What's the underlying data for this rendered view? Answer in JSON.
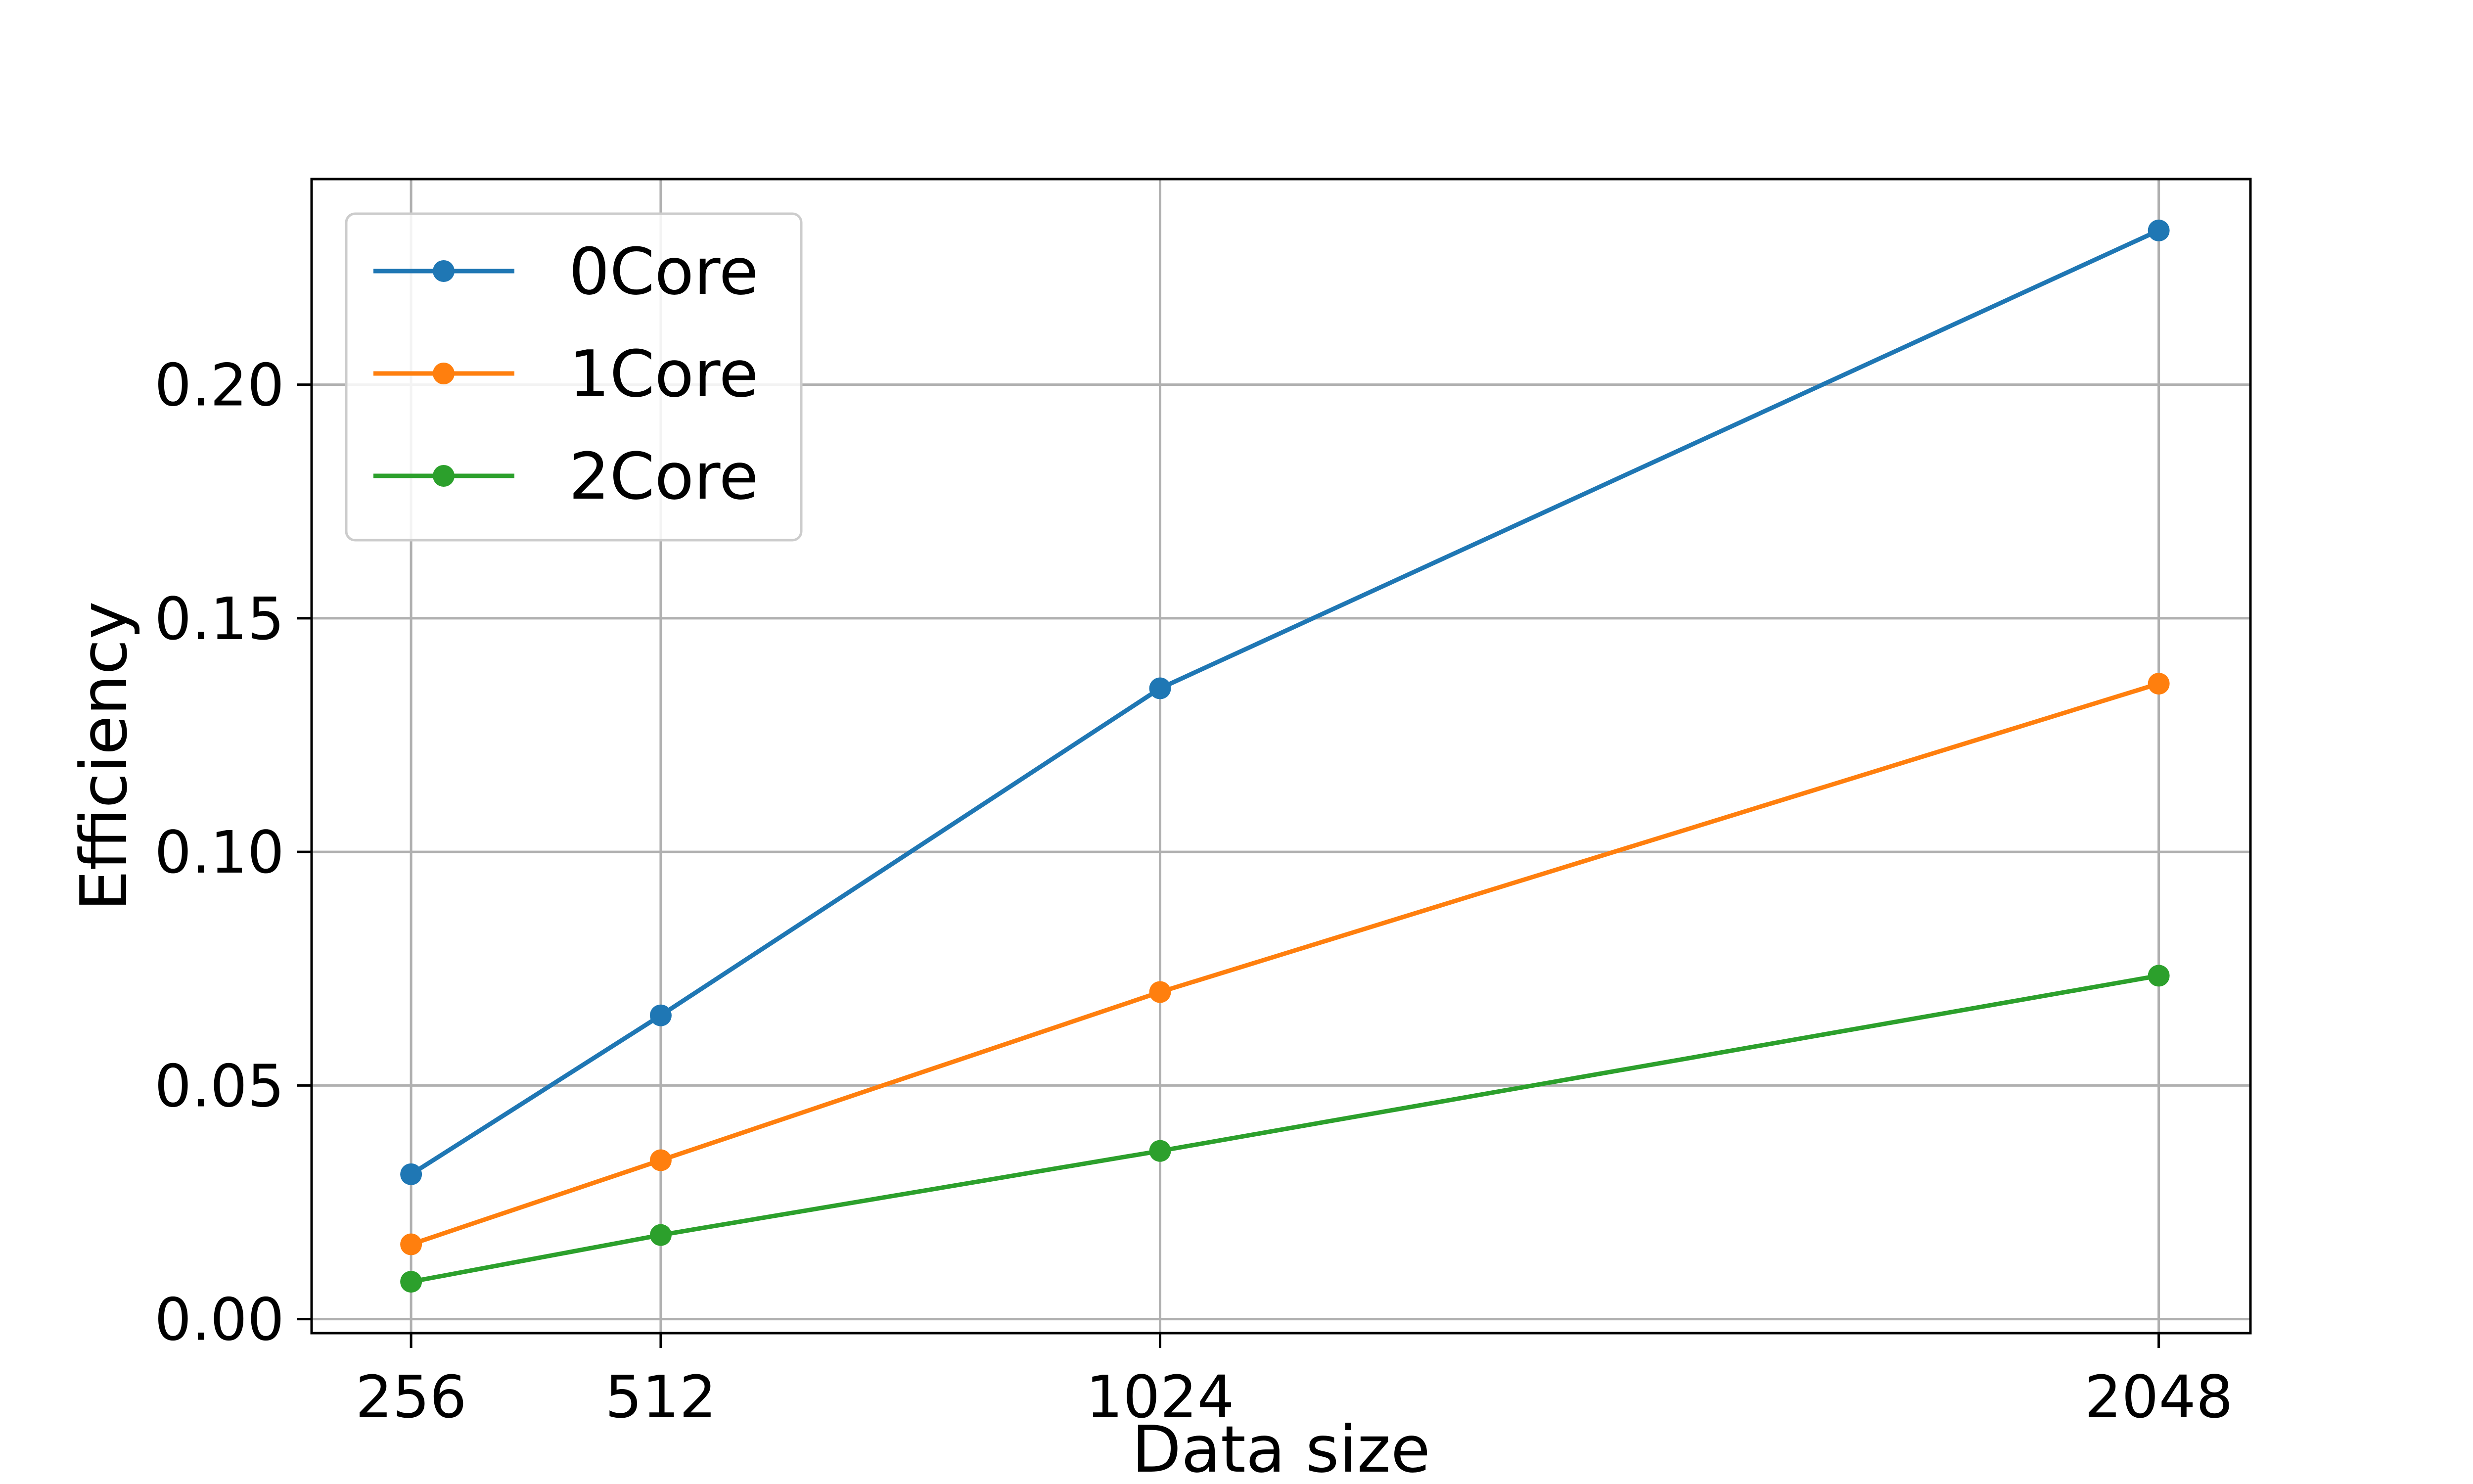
{
  "chart_data": {
    "type": "line",
    "title": "",
    "xlabel": "Data size",
    "ylabel": "Efficiency",
    "x": [
      256,
      512,
      1024,
      2048
    ],
    "x_tick_labels": [
      "256",
      "512",
      "1024",
      "2048"
    ],
    "y_ticks": [
      0.0,
      0.05,
      0.1,
      0.15,
      0.2
    ],
    "y_tick_labels": [
      "0.00",
      "0.05",
      "0.10",
      "0.15",
      "0.20"
    ],
    "xlim": [
      154,
      2142
    ],
    "ylim": [
      -0.003,
      0.244
    ],
    "grid": true,
    "legend_position": "upper-left",
    "series": [
      {
        "name": "0Core",
        "color": "#1f77b4",
        "values": [
          0.031,
          0.065,
          0.135,
          0.233
        ]
      },
      {
        "name": "1Core",
        "color": "#ff7f0e",
        "values": [
          0.016,
          0.034,
          0.07,
          0.136
        ]
      },
      {
        "name": "2Core",
        "color": "#2ca02c",
        "values": [
          0.008,
          0.018,
          0.036,
          0.0735
        ]
      }
    ]
  }
}
